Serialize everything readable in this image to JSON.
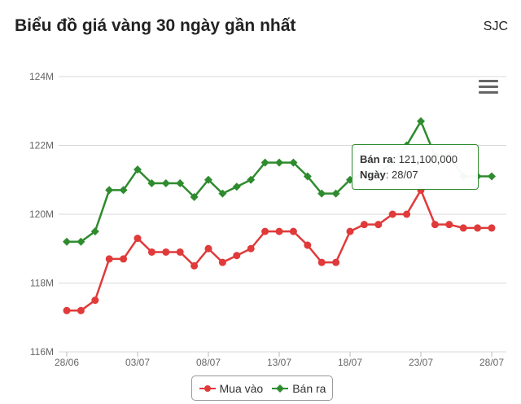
{
  "header": {
    "title": "Biểu đồ giá vàng 30 ngày gần nhất",
    "brand": "SJC"
  },
  "tooltip": {
    "series_label": "Bán ra",
    "value": "121,100,000",
    "date_label": "Ngày",
    "date": "28/07"
  },
  "colors": {
    "buy": "#e03a3a",
    "sell": "#2e8b2e",
    "grid": "#d9d9d9",
    "axis_text": "#666666"
  },
  "chart_data": {
    "type": "line",
    "title": "Biểu đồ giá vàng 30 ngày gần nhất",
    "xlabel": "",
    "ylabel": "",
    "ylim": [
      116,
      124
    ],
    "y_unit": "M",
    "y_ticks": [
      "116M",
      "118M",
      "120M",
      "122M",
      "124M"
    ],
    "x_ticks": [
      "28/06",
      "03/07",
      "08/07",
      "13/07",
      "18/07",
      "23/07",
      "28/07"
    ],
    "grid": true,
    "legend": "bottom-center",
    "x": [
      "28/06",
      "29/06",
      "30/06",
      "01/07",
      "02/07",
      "03/07",
      "04/07",
      "05/07",
      "06/07",
      "07/07",
      "08/07",
      "09/07",
      "10/07",
      "11/07",
      "12/07",
      "13/07",
      "14/07",
      "15/07",
      "16/07",
      "17/07",
      "18/07",
      "19/07",
      "20/07",
      "21/07",
      "22/07",
      "23/07",
      "24/07",
      "25/07",
      "26/07",
      "27/07",
      "28/07"
    ],
    "series": [
      {
        "name": "Mua vào",
        "values": [
          117.2,
          117.2,
          117.5,
          118.7,
          118.7,
          119.3,
          118.9,
          118.9,
          118.9,
          118.5,
          119.0,
          118.6,
          118.8,
          119.0,
          119.5,
          119.5,
          119.5,
          119.1,
          118.6,
          118.6,
          119.5,
          119.7,
          119.7,
          120.0,
          120.0,
          120.7,
          119.7,
          119.7,
          119.6,
          119.6,
          119.6
        ]
      },
      {
        "name": "Bán ra",
        "values": [
          119.2,
          119.2,
          119.5,
          120.7,
          120.7,
          121.3,
          120.9,
          120.9,
          120.9,
          120.5,
          121.0,
          120.6,
          120.8,
          121.0,
          121.5,
          121.5,
          121.5,
          121.1,
          120.6,
          120.6,
          121.0,
          121.2,
          121.2,
          121.5,
          122.0,
          122.7,
          121.7,
          121.7,
          121.1,
          121.1,
          121.1
        ]
      }
    ]
  }
}
